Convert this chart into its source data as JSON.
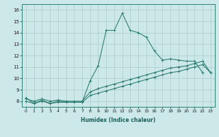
{
  "xlabel": "Humidex (Indice chaleur)",
  "bg_color": "#cce8e8",
  "grid_color": "#aacccc",
  "line_color": "#2e7d72",
  "xlim": [
    -0.5,
    23.5
  ],
  "ylim": [
    7.5,
    16.5
  ],
  "xticks": [
    0,
    1,
    2,
    3,
    4,
    5,
    6,
    7,
    8,
    9,
    10,
    11,
    12,
    13,
    14,
    15,
    16,
    17,
    18,
    19,
    20,
    21,
    22,
    23
  ],
  "yticks": [
    8,
    9,
    10,
    11,
    12,
    13,
    14,
    15,
    16
  ],
  "line1_x": [
    0,
    1,
    2,
    3,
    4,
    5,
    6,
    7,
    8,
    9,
    10,
    11,
    12,
    13,
    14,
    15,
    16,
    17,
    18,
    19,
    20,
    21,
    22
  ],
  "line1_y": [
    8.3,
    7.8,
    8.1,
    7.8,
    8.0,
    7.9,
    7.9,
    7.9,
    9.8,
    11.1,
    14.2,
    14.2,
    15.7,
    14.2,
    14.0,
    13.6,
    12.4,
    11.6,
    11.7,
    11.6,
    11.5,
    11.5,
    10.5
  ],
  "line2_x": [
    0,
    1,
    2,
    3,
    4,
    5,
    6,
    7,
    8,
    9,
    10,
    11,
    12,
    13,
    14,
    15,
    16,
    17,
    18,
    19,
    20,
    21,
    22,
    23
  ],
  "line2_y": [
    8.0,
    7.8,
    8.0,
    7.8,
    7.9,
    7.9,
    7.9,
    7.9,
    8.5,
    8.7,
    8.9,
    9.1,
    9.3,
    9.5,
    9.7,
    9.9,
    10.1,
    10.3,
    10.5,
    10.6,
    10.8,
    11.0,
    11.2,
    10.5
  ],
  "line3_x": [
    0,
    1,
    2,
    3,
    4,
    5,
    6,
    7,
    8,
    9,
    10,
    11,
    12,
    13,
    14,
    15,
    16,
    17,
    18,
    19,
    20,
    21,
    22,
    23
  ],
  "line3_y": [
    8.2,
    8.0,
    8.2,
    8.0,
    8.1,
    8.0,
    8.0,
    8.0,
    8.8,
    9.1,
    9.3,
    9.5,
    9.7,
    9.9,
    10.1,
    10.3,
    10.5,
    10.7,
    10.9,
    11.0,
    11.1,
    11.3,
    11.5,
    10.5
  ]
}
